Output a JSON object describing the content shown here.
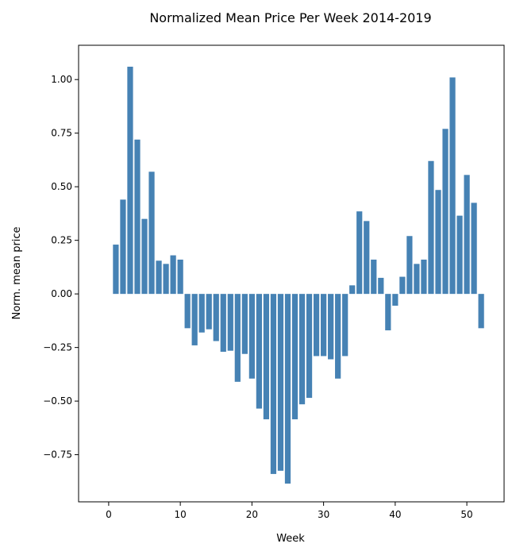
{
  "chart_data": {
    "type": "bar",
    "title": "Normalized Mean Price Per Week 2014-2019",
    "xlabel": "Week",
    "ylabel": "Norm. mean price",
    "xlim": [
      -4.2,
      55.2
    ],
    "ylim": [
      -0.97,
      1.16
    ],
    "x_ticks": [
      0,
      10,
      20,
      30,
      40,
      50
    ],
    "y_ticks": [
      1.0,
      0.75,
      0.5,
      0.25,
      0.0,
      -0.25,
      -0.5,
      -0.75
    ],
    "x_tick_labels": [
      "0",
      "10",
      "20",
      "30",
      "40",
      "50"
    ],
    "y_tick_labels": [
      "1.00",
      "0.75",
      "0.50",
      "0.25",
      "0.00",
      "−0.25",
      "−0.50",
      "−0.75"
    ],
    "grid": false,
    "bar_color": "#4682b4",
    "series": [
      {
        "x": [
          1,
          2,
          3,
          4,
          5,
          6,
          7,
          8,
          9,
          10,
          11,
          12,
          13,
          14,
          15,
          16,
          17,
          18,
          19,
          20,
          21,
          22,
          23,
          24,
          25,
          26,
          27,
          28,
          29,
          30,
          31,
          32,
          33,
          34,
          35,
          36,
          37,
          38,
          39,
          40,
          41,
          42,
          43,
          44,
          45,
          46,
          47,
          48,
          49,
          50,
          51,
          52
        ],
        "values": [
          0.23,
          0.44,
          1.06,
          0.72,
          0.35,
          0.57,
          0.155,
          0.14,
          0.18,
          0.16,
          -0.16,
          -0.24,
          -0.18,
          -0.165,
          -0.22,
          -0.27,
          -0.265,
          -0.41,
          -0.28,
          -0.395,
          -0.535,
          -0.585,
          -0.84,
          -0.825,
          -0.885,
          -0.585,
          -0.515,
          -0.485,
          -0.29,
          -0.29,
          -0.305,
          -0.395,
          -0.29,
          0.04,
          0.385,
          0.34,
          0.16,
          0.075,
          -0.17,
          -0.055,
          0.08,
          0.27,
          0.14,
          0.16,
          0.62,
          0.485,
          0.77,
          1.01,
          0.365,
          0.555,
          0.425,
          -0.16
        ]
      }
    ]
  }
}
